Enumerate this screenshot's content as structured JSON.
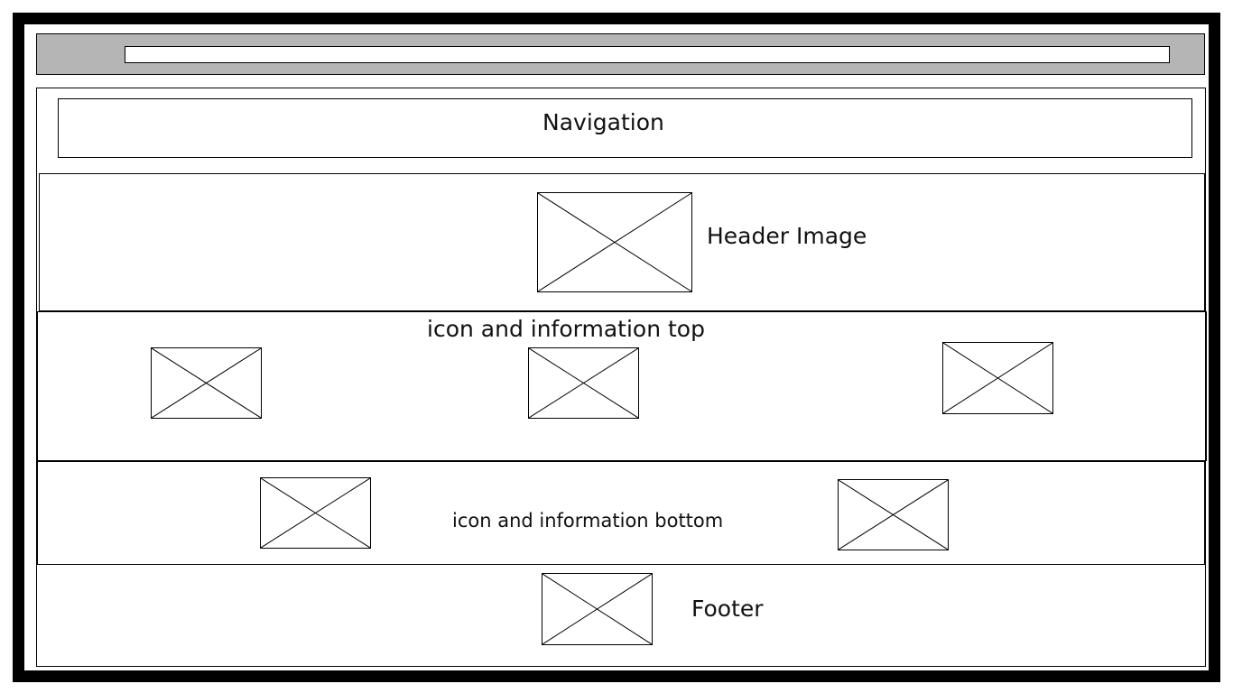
{
  "browser": {
    "address_value": ""
  },
  "navigation": {
    "label": "Navigation"
  },
  "header": {
    "label": "Header Image"
  },
  "top_section": {
    "label": "icon and information top"
  },
  "bottom_section": {
    "label": "icon and information bottom"
  },
  "footer": {
    "label": "Footer"
  },
  "colors": {
    "frame": "#000000",
    "browser_bar": "#b5b5b5",
    "background": "#ffffff"
  },
  "icons": {
    "placeholder": "image-placeholder-icon"
  }
}
